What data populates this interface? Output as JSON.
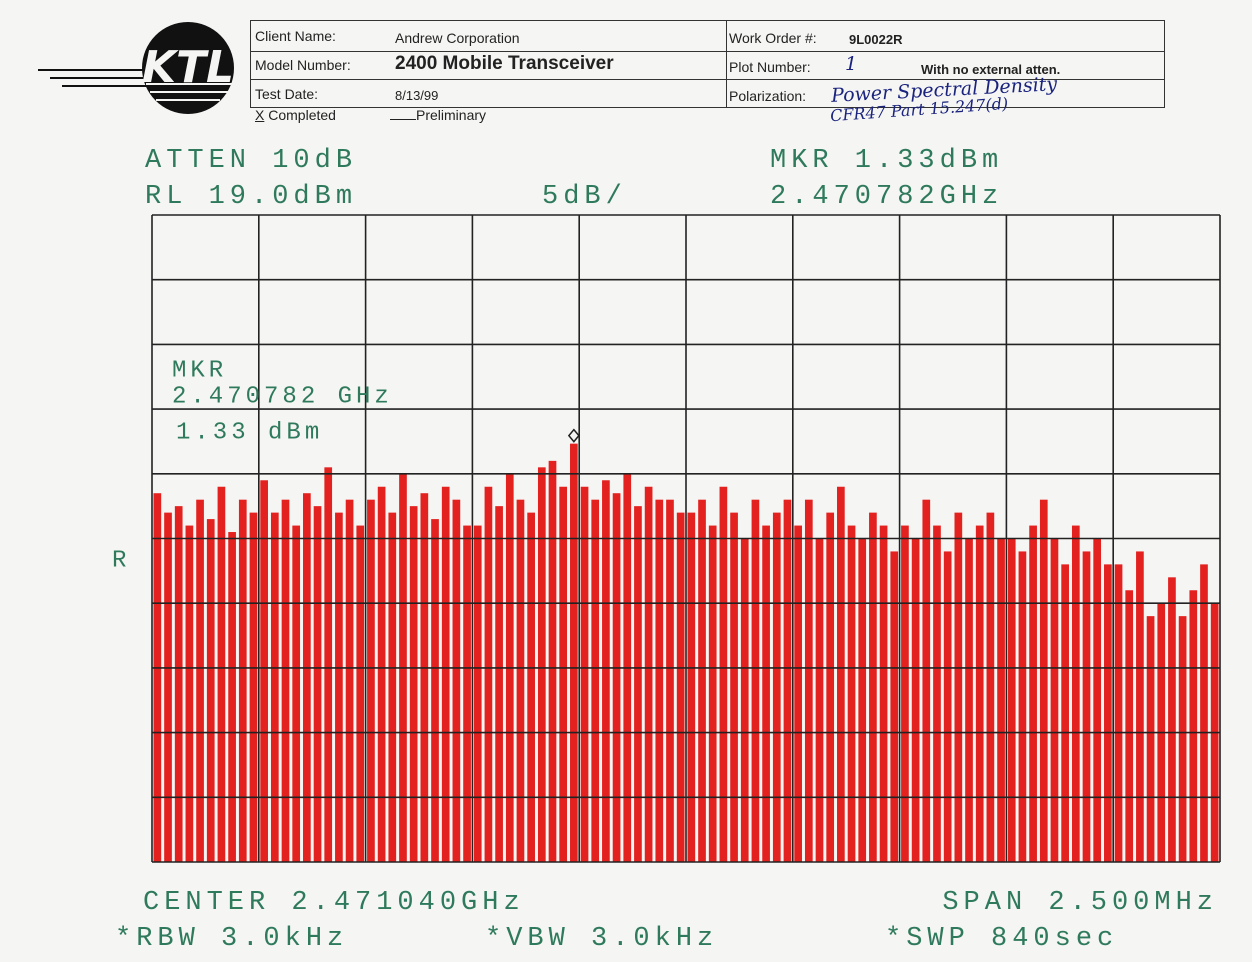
{
  "header": {
    "logo": "KTL",
    "client_label": "Client Name:",
    "client": "Andrew Corporation",
    "model_label": "Model Number:",
    "model": "2400 Mobile Transceiver",
    "date_label": "Test Date:",
    "date": "8/13/99",
    "completed_mark": "X",
    "completed": "Completed",
    "preliminary": "Preliminary",
    "work_order_label": "Work Order #:",
    "work_order": "9L0022R",
    "plot_label": "Plot Number:",
    "plot_number": "1",
    "plot_note": "With no external atten.",
    "polarization_label": "Polarization:",
    "polarization": "Power Spectral Density",
    "regulation": "CFR47 Part 15.247(d)"
  },
  "chart_data": {
    "type": "bar",
    "atten": "ATTEN 10dB",
    "ref_level": "RL 19.0dBm",
    "scale": "5dB/",
    "marker_top": "MKR 1.33dBm",
    "marker_freq_top": "2.470782GHz",
    "marker_label": "MKR",
    "marker_freq": "2.470782 GHz",
    "marker_level": "1.33 dBm",
    "ref_mark": "R",
    "center": "CENTER 2.471040GHz",
    "span": "SPAN 2.500MHz",
    "rbw": "*RBW 3.0kHz",
    "vbw": "*VBW 3.0kHz",
    "sweep": "*SWP 840sec",
    "color": "#e3211f",
    "ylim": [
      -31,
      19
    ],
    "yticks": [
      19,
      14,
      9,
      4,
      -1,
      -6,
      -11,
      -16,
      -21,
      -26,
      -31
    ],
    "grid": true,
    "values": [
      -2.5,
      -4,
      -3.5,
      -5,
      -3,
      -4.5,
      -2,
      -5.5,
      -3,
      -4,
      -1.5,
      -4,
      -3,
      -5,
      -2.5,
      -3.5,
      -0.5,
      -4,
      -3,
      -5,
      -3,
      -2,
      -4,
      -1,
      -3.5,
      -2.5,
      -4.5,
      -2,
      -3,
      -5,
      -5,
      -2,
      -3.5,
      -1,
      -3,
      -4,
      -0.5,
      0,
      -2,
      1.33,
      -2,
      -3,
      -1.5,
      -2.5,
      -1,
      -3.5,
      -2,
      -3,
      -3,
      -4,
      -4,
      -3,
      -5,
      -2,
      -4,
      -6,
      -3,
      -5,
      -4,
      -3,
      -5,
      -3,
      -6,
      -4,
      -2,
      -5,
      -6,
      -4,
      -5,
      -7,
      -5,
      -6,
      -3,
      -5,
      -7,
      -4,
      -6,
      -5,
      -4,
      -6,
      -6,
      -7,
      -5,
      -3,
      -6,
      -8,
      -5,
      -7,
      -6,
      -8,
      -8,
      -10,
      -7,
      -12,
      -11,
      -9,
      -12,
      -10,
      -8,
      -11
    ]
  }
}
